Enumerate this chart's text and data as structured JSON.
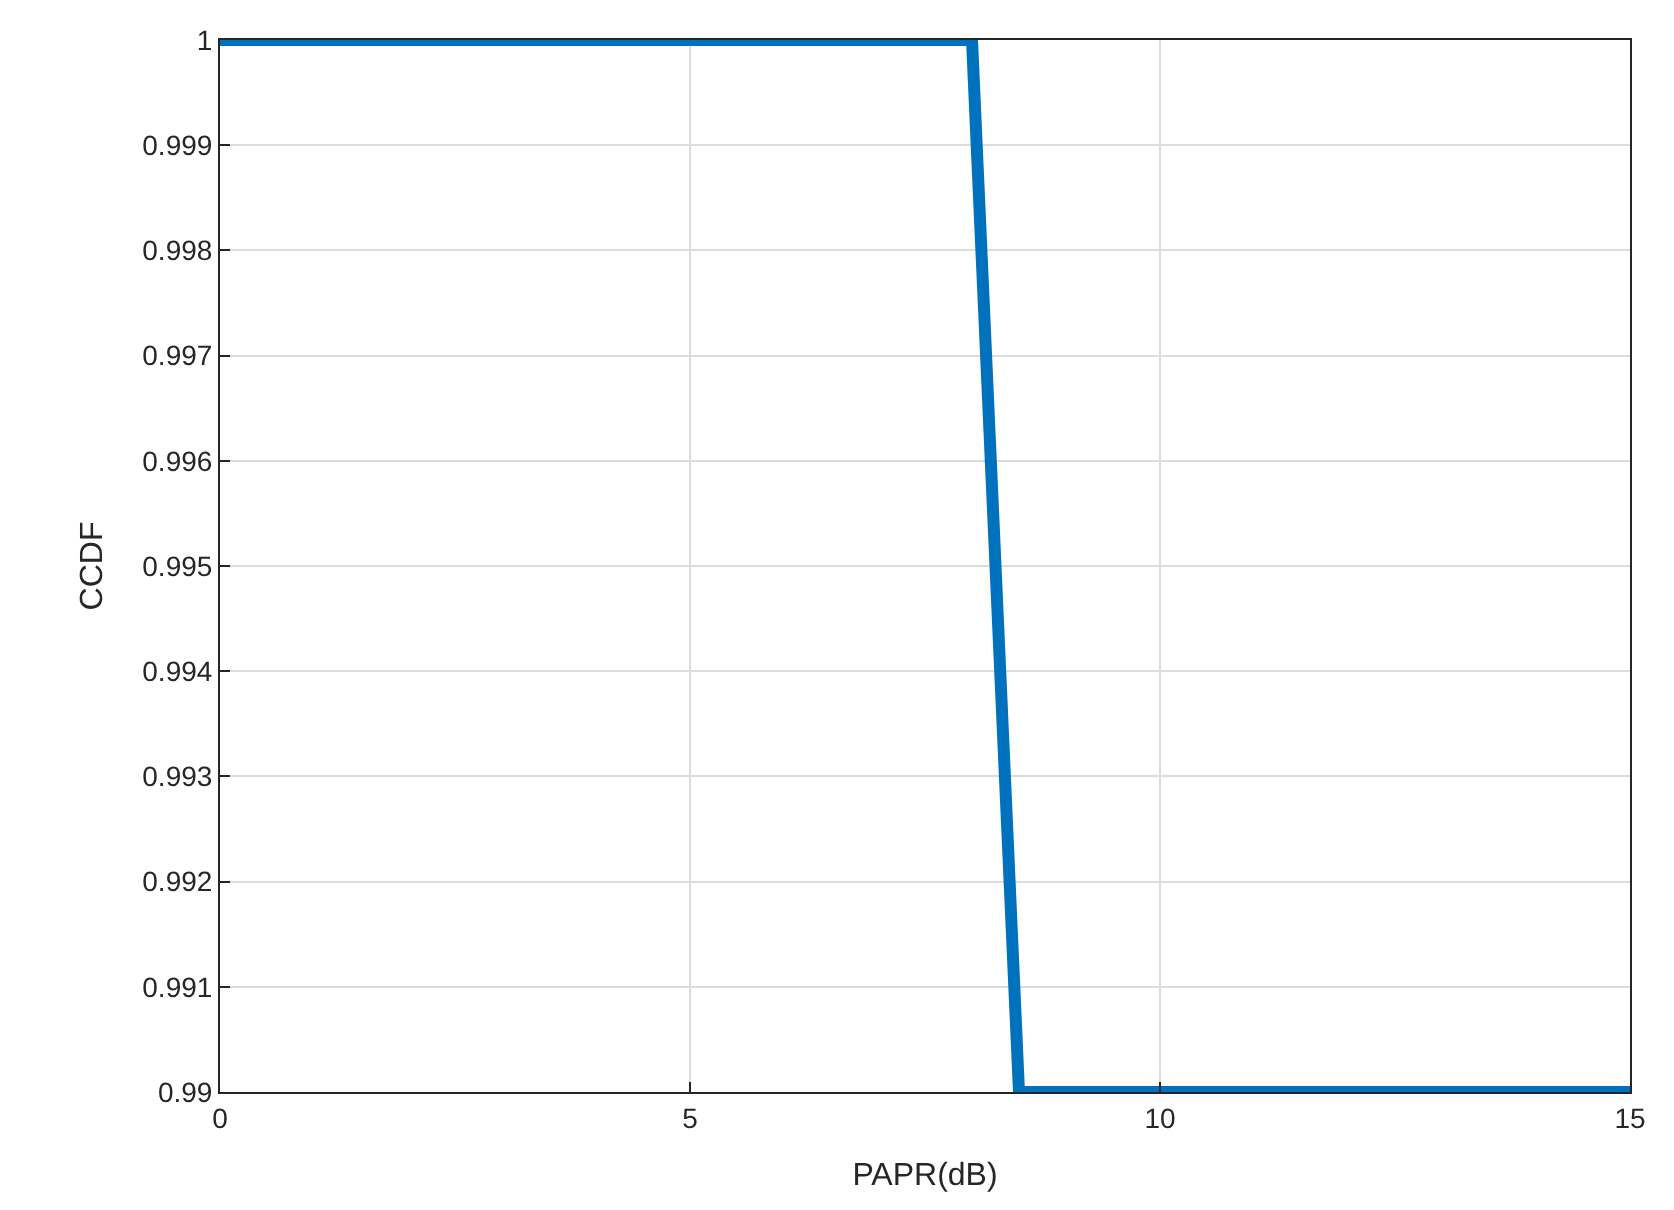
{
  "chart_data": {
    "type": "line",
    "xlabel": "PAPR(dB)",
    "ylabel": "CCDF",
    "x": [
      0,
      8.0,
      8.5,
      15
    ],
    "series": [
      {
        "color": "#0072bd",
        "values": [
          1,
          1,
          0.99,
          0.99
        ]
      }
    ],
    "xlim": [
      0,
      15
    ],
    "xticks": [
      0,
      5,
      10,
      15
    ],
    "ylim": [
      0.99,
      1
    ],
    "yticks": [
      0.99,
      0.991,
      0.992,
      0.993,
      0.994,
      0.995,
      0.996,
      0.997,
      0.998,
      0.999,
      1
    ],
    "grid": true,
    "marker": "none",
    "line_style": "solid"
  }
}
